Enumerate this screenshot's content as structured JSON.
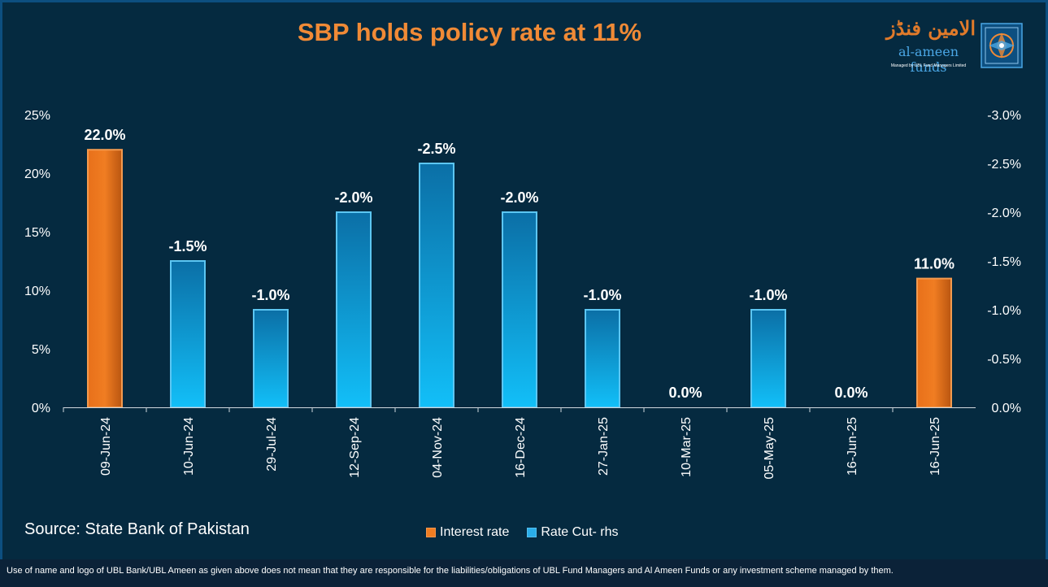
{
  "title": "SBP holds policy rate at 11%",
  "logo": {
    "urdu": "الامین فنڈز",
    "latin": "al-ameen funds",
    "tagline": "Managed by UBL Fund Managers Limited"
  },
  "source": "Source: State Bank of Pakistan",
  "disclaimer": "Use of name and logo of UBL Bank/UBL Ameen as given above does not mean that they are responsible for the liabilities/obligations of UBL Fund Managers and Al Ameen Funds or any investment scheme managed by them.",
  "colors": {
    "interest": "#f07d22",
    "cut": "#2aaeea",
    "title": "#f08a36",
    "background": "#052a40"
  },
  "legend": [
    {
      "label": "Interest rate",
      "color": "#f07d22"
    },
    {
      "label": "Rate Cut- rhs",
      "color": "#2aaeea"
    }
  ],
  "chart_data": {
    "type": "bar",
    "title": "SBP holds policy rate at 11%",
    "categories": [
      "09-Jun-24",
      "10-Jun-24",
      "29-Jul-24",
      "12-Sep-24",
      "04-Nov-24",
      "16-Dec-24",
      "27-Jan-25",
      "10-Mar-25",
      "05-May-25",
      "16-Jun-25",
      "16-Jun-25"
    ],
    "series": [
      {
        "name": "Interest rate",
        "axis": "left",
        "values": [
          22.0,
          null,
          null,
          null,
          null,
          null,
          null,
          null,
          null,
          null,
          11.0
        ],
        "labels": [
          "22.0%",
          null,
          null,
          null,
          null,
          null,
          null,
          null,
          null,
          null,
          "11.0%"
        ]
      },
      {
        "name": "Rate Cut- rhs",
        "axis": "right",
        "values": [
          null,
          -1.5,
          -1.0,
          -2.0,
          -2.5,
          -2.0,
          -1.0,
          0.0,
          -1.0,
          0.0,
          null
        ],
        "labels": [
          null,
          "-1.5%",
          "-1.0%",
          "-2.0%",
          "-2.5%",
          "-2.0%",
          "-1.0%",
          "0.0%",
          "-1.0%",
          "0.0%",
          null
        ]
      }
    ],
    "left_axis": {
      "ylim": [
        0,
        25
      ],
      "ticks": [
        "0%",
        "5%",
        "10%",
        "15%",
        "20%",
        "25%"
      ],
      "tick_values": [
        0,
        5,
        10,
        15,
        20,
        25
      ]
    },
    "right_axis": {
      "ylim": [
        0,
        -3.0
      ],
      "ticks": [
        "0.0%",
        "-0.5%",
        "-1.0%",
        "-1.5%",
        "-2.0%",
        "-2.5%",
        "-3.0%"
      ],
      "tick_values": [
        0,
        -0.5,
        -1.0,
        -1.5,
        -2.0,
        -2.5,
        -3.0
      ]
    },
    "grid": false,
    "legend_position": "bottom-center"
  }
}
